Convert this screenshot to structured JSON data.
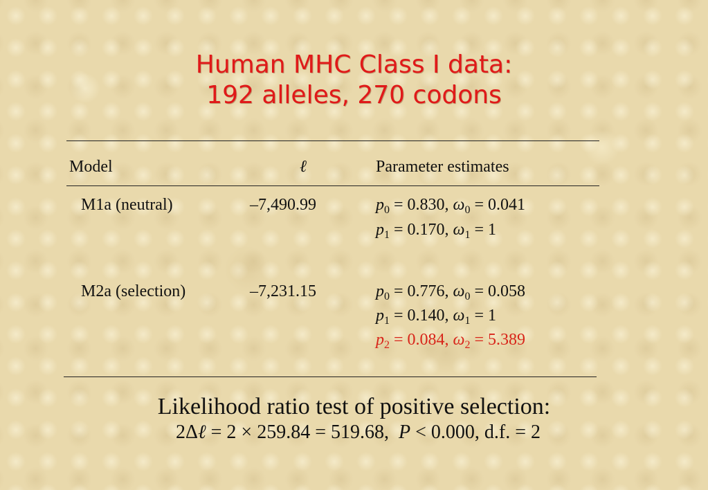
{
  "slide": {
    "title_line1": "Human MHC Class I data:",
    "title_line2": "192 alleles, 270 codons"
  },
  "table": {
    "headers": {
      "model": "Model",
      "lnl": "ℓ",
      "params": "Parameter estimates"
    },
    "rows": [
      {
        "model": "M1a (neutral)",
        "lnl": "–7,490.99",
        "estimates": [
          {
            "p_symbol": "p",
            "p_sub": "0",
            "p_val": " = 0.830, ",
            "w_symbol": "ω",
            "w_sub": "0",
            "w_val": " = 0.041",
            "highlight": false
          },
          {
            "p_symbol": "p",
            "p_sub": "1",
            "p_val": " = 0.170, ",
            "w_symbol": "ω",
            "w_sub": "1",
            "w_val": " = 1",
            "highlight": false
          }
        ]
      },
      {
        "model": "M2a (selection)",
        "lnl": "–7,231.15",
        "estimates": [
          {
            "p_symbol": "p",
            "p_sub": "0",
            "p_val": " = 0.776, ",
            "w_symbol": "ω",
            "w_sub": "0",
            "w_val": " = 0.058",
            "highlight": false
          },
          {
            "p_symbol": "p",
            "p_sub": "1",
            "p_val": " = 0.140, ",
            "w_symbol": "ω",
            "w_sub": "1",
            "w_val": " = 1",
            "highlight": false
          },
          {
            "p_symbol": "p",
            "p_sub": "2",
            "p_val": " = 0.084, ",
            "w_symbol": "ω",
            "w_sub": "2",
            "w_val": " = 5.389",
            "highlight": true
          }
        ]
      }
    ]
  },
  "lrt": {
    "heading": "Likelihood ratio test of positive selection:",
    "eq_prefix": "2Δ",
    "eq_ell": "ℓ",
    "eq_mid": " = 2 × 259.84 = 519.68,  ",
    "eq_P": "P",
    "eq_suffix": " < 0.000, d.f. = 2"
  },
  "colors": {
    "title": "#e01919",
    "highlight": "#d8251a",
    "background": "#e9d9ac"
  }
}
